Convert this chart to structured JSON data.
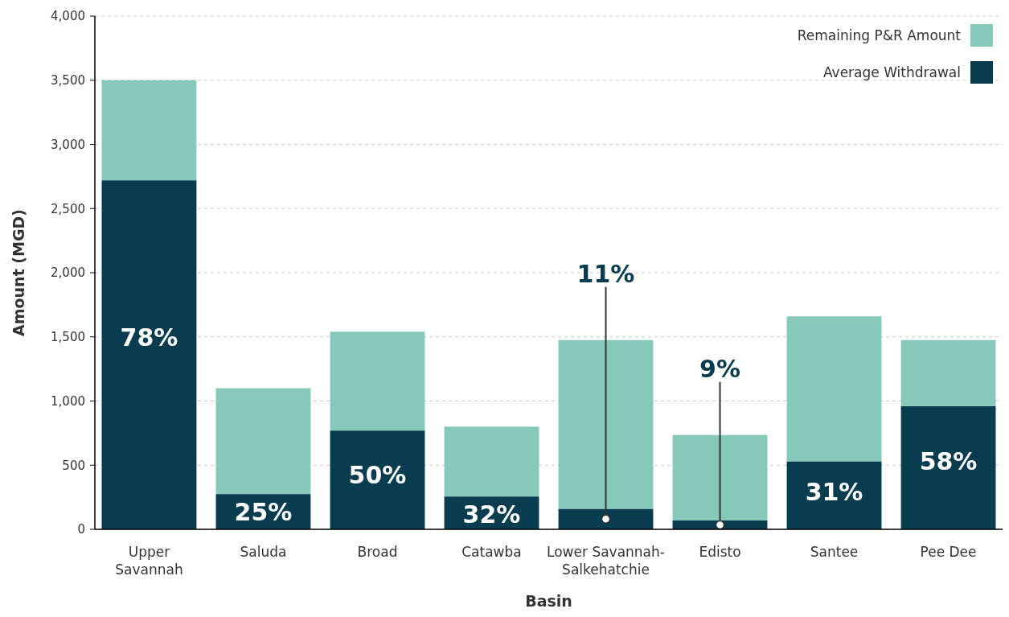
{
  "chart_data": {
    "type": "bar",
    "stacked": true,
    "xlabel": "Basin",
    "ylabel": "Amount (MGD)",
    "categories": [
      "Upper Savannah",
      "Saluda",
      "Broad",
      "Catawba",
      "Lower Savannah-Salkehatchie",
      "Edisto",
      "Santee",
      "Pee Dee"
    ],
    "series": [
      {
        "name": "Average Withdrawal",
        "color": "#083d4f",
        "values": [
          2720,
          275,
          770,
          256,
          160,
          70,
          530,
          960
        ]
      },
      {
        "name": "Remaining P&R Amount",
        "color": "#86c9ba",
        "values": [
          780,
          825,
          770,
          544,
          1315,
          665,
          1130,
          515
        ]
      }
    ],
    "ylim": [
      0,
      4000
    ],
    "yticks": [
      {
        "value": 0,
        "label": "0"
      },
      {
        "value": 500,
        "label": "500"
      },
      {
        "value": 1000,
        "label": "1,000"
      },
      {
        "value": 1500,
        "label": "1,500"
      },
      {
        "value": 2000,
        "label": "2,000"
      },
      {
        "value": 2500,
        "label": "2,500"
      },
      {
        "value": 3000,
        "label": "3,000"
      },
      {
        "value": 3500,
        "label": "3,500"
      },
      {
        "value": 4000,
        "label": "4,000"
      }
    ],
    "grid": "y",
    "legend": "top right",
    "annotations": [
      "78%",
      "25%",
      "50%",
      "32%",
      "11%",
      "9%",
      "31%",
      "58%"
    ]
  }
}
